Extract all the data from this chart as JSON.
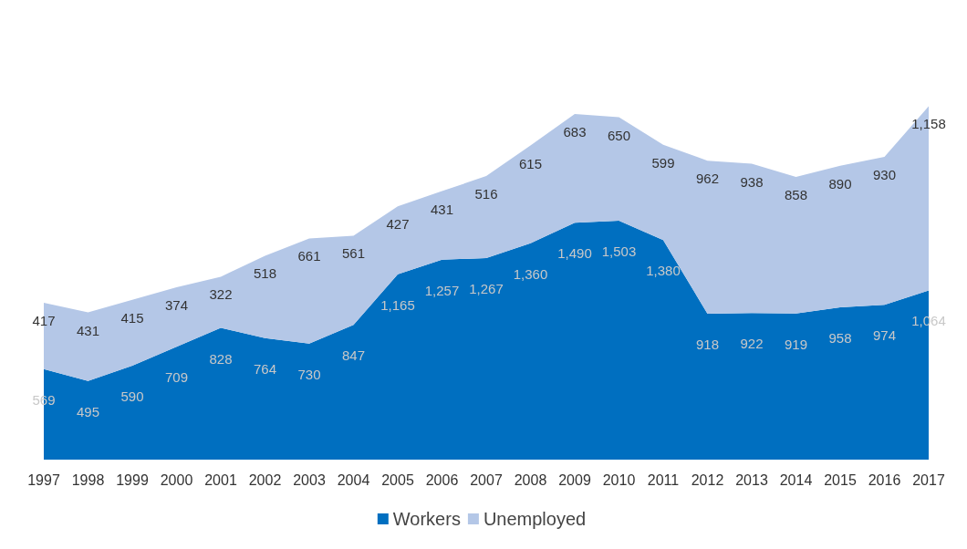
{
  "chart_data": {
    "type": "area",
    "stacked": true,
    "grid": false,
    "legend": "bottom",
    "categories": [
      "1997",
      "1998",
      "1999",
      "2000",
      "2001",
      "2002",
      "2003",
      "2004",
      "2005",
      "2006",
      "2007",
      "2008",
      "2009",
      "2010",
      "2011",
      "2012",
      "2013",
      "2014",
      "2015",
      "2016",
      "2017"
    ],
    "series": [
      {
        "name": "Workers",
        "color": "#006fc0",
        "values": [
          569,
          495,
          590,
          709,
          828,
          764,
          730,
          847,
          1165,
          1257,
          1267,
          1360,
          1490,
          1503,
          1380,
          918,
          922,
          919,
          958,
          974,
          1064
        ],
        "value_labels": [
          "569",
          "495",
          "590",
          "709",
          "828",
          "764",
          "730",
          "847",
          "1,165",
          "1,257",
          "1,267",
          "1,360",
          "1,490",
          "1,503",
          "1,380",
          "918",
          "922",
          "919",
          "958",
          "974",
          "1,064"
        ]
      },
      {
        "name": "Unemployed",
        "color": "#b4c7e7",
        "values": [
          417,
          431,
          415,
          374,
          322,
          518,
          661,
          561,
          427,
          431,
          516,
          615,
          683,
          650,
          599,
          962,
          938,
          858,
          890,
          930,
          1158
        ],
        "value_labels": [
          "417",
          "431",
          "415",
          "374",
          "322",
          "518",
          "661",
          "561",
          "427",
          "431",
          "516",
          "615",
          "683",
          "650",
          "599",
          "962",
          "938",
          "858",
          "890",
          "930",
          "1,158"
        ]
      }
    ]
  }
}
